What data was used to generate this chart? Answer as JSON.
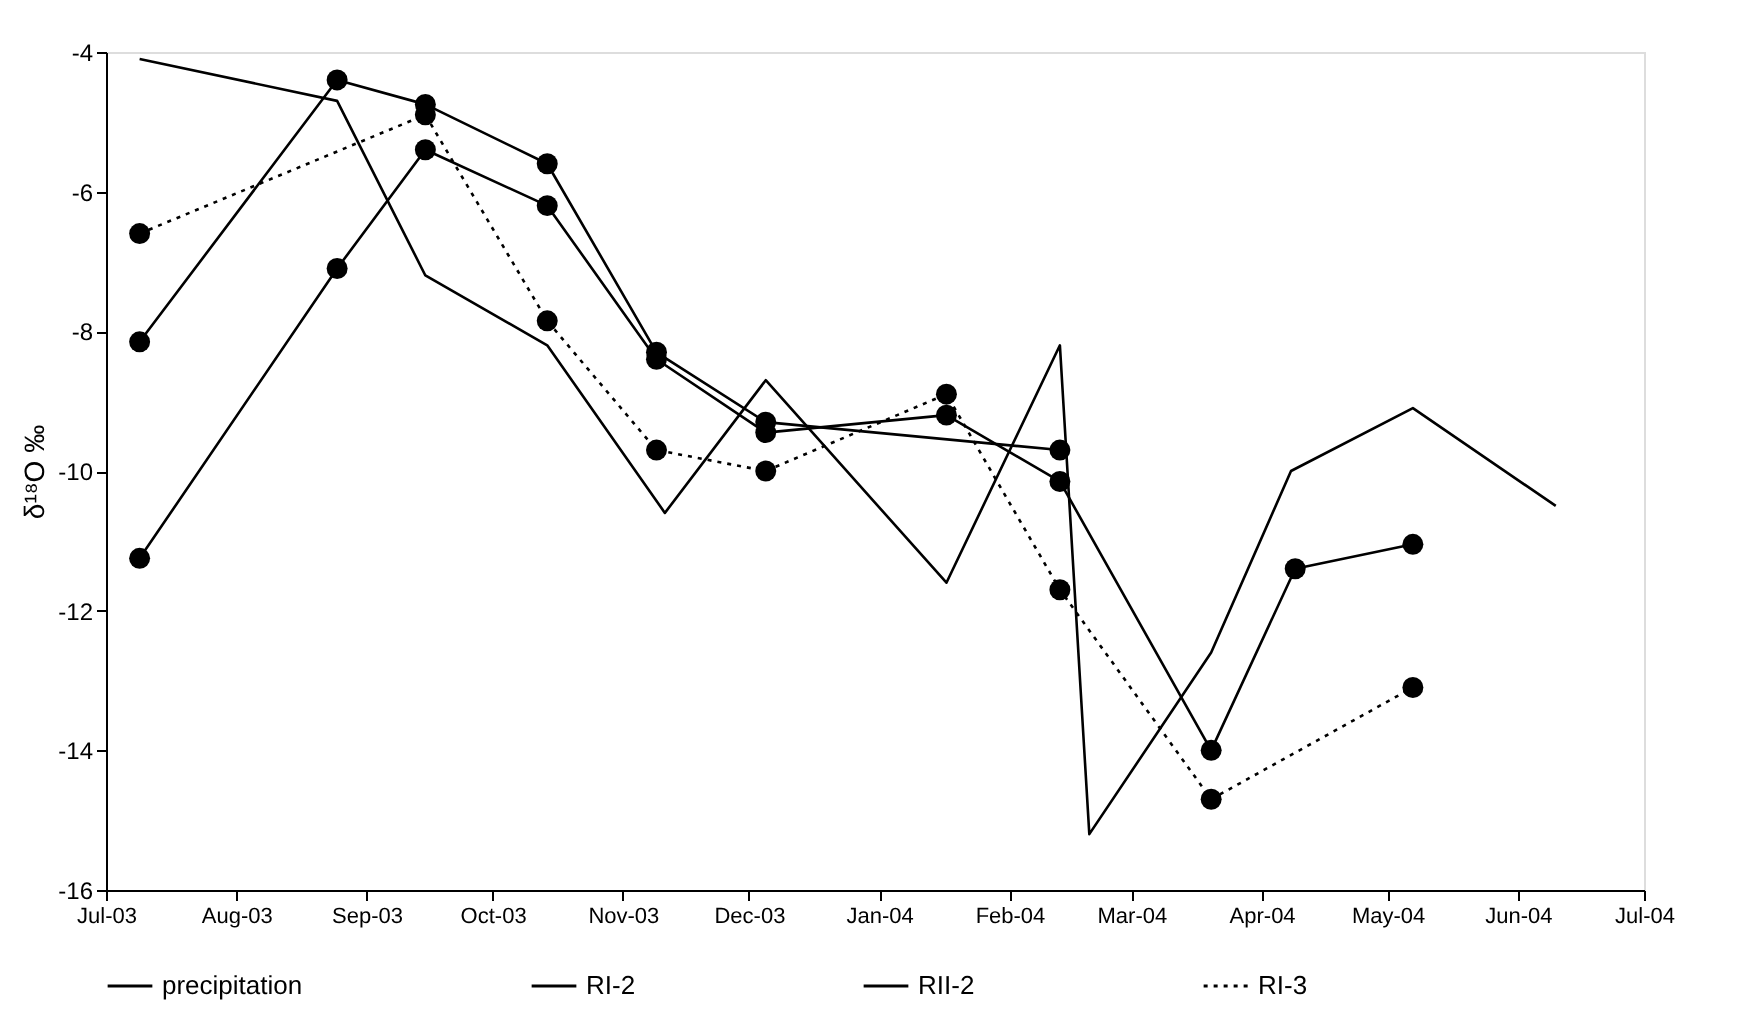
{
  "chart_data": {
    "type": "line",
    "ylabel": "δ¹⁸O ‰",
    "ylim": [
      -16,
      -4
    ],
    "yticks": [
      -16,
      -14,
      -12,
      -10,
      -8,
      -6,
      -4
    ],
    "xlim": [
      "2003-07-01",
      "2004-07-01"
    ],
    "xticks": [
      {
        "value": "2003-07-01",
        "label": "Jul-03"
      },
      {
        "value": "2003-08-01",
        "label": "Aug-03"
      },
      {
        "value": "2003-09-01",
        "label": "Sep-03"
      },
      {
        "value": "2003-10-01",
        "label": "Oct-03"
      },
      {
        "value": "2003-11-01",
        "label": "Nov-03"
      },
      {
        "value": "2003-12-01",
        "label": "Dec-03"
      },
      {
        "value": "2004-01-01",
        "label": "Jan-04"
      },
      {
        "value": "2004-02-01",
        "label": "Feb-04"
      },
      {
        "value": "2004-03-01",
        "label": "Mar-04"
      },
      {
        "value": "2004-04-01",
        "label": "Apr-04"
      },
      {
        "value": "2004-05-01",
        "label": "May-04"
      },
      {
        "value": "2004-06-01",
        "label": "Jun-04"
      },
      {
        "value": "2004-07-01",
        "label": "Jul-04"
      }
    ],
    "grid": false,
    "legend": "bottom",
    "series": [
      {
        "name": "precipitation",
        "color": "#000000",
        "marker": "none",
        "line_style": "solid",
        "x": [
          "2003-07-09",
          "2003-08-25",
          "2003-09-15",
          "2003-10-14",
          "2003-11-11",
          "2003-12-05",
          "2004-01-17",
          "2004-02-13",
          "2004-02-20",
          "2004-03-20",
          "2004-04-08",
          "2004-05-07",
          "2004-06-10"
        ],
        "values": [
          -4.1,
          -4.7,
          -7.2,
          -8.2,
          -10.6,
          -8.7,
          -11.6,
          -8.2,
          -15.2,
          -12.6,
          -10.0,
          -9.1,
          -10.5
        ]
      },
      {
        "name": "RI-2",
        "color": "#000000",
        "marker": "circle",
        "line_style": "solid",
        "x": [
          "2003-07-09",
          "2003-08-25",
          "2003-09-15",
          "2003-10-14",
          "2003-11-09",
          "2003-12-05",
          "2004-01-17",
          "2004-02-13",
          "2004-03-20",
          "2004-04-09",
          "2004-05-07"
        ],
        "values": [
          -11.25,
          -7.1,
          -5.4,
          -6.2,
          -8.4,
          -9.45,
          -9.2,
          -10.15,
          -14.0,
          -11.4,
          -11.05
        ]
      },
      {
        "name": "RII-2",
        "color": "#000000",
        "marker": "circle",
        "line_style": "solid",
        "x": [
          "2003-07-09",
          "2003-08-25",
          "2003-09-15",
          "2003-10-14",
          "2003-11-09",
          "2003-12-05",
          "2004-02-13"
        ],
        "values": [
          -8.15,
          -4.4,
          -4.75,
          -5.6,
          -8.3,
          -9.3,
          -9.7
        ]
      },
      {
        "name": "RI-3",
        "color": "#000000",
        "marker": "circle",
        "line_style": "dotted",
        "x": [
          "2003-07-09",
          "2003-09-15",
          "2003-10-14",
          "2003-11-09",
          "2003-12-05",
          "2004-01-17",
          "2004-02-13",
          "2004-03-20",
          "2004-05-07"
        ],
        "values": [
          -6.6,
          -4.9,
          -7.85,
          -9.7,
          -10.0,
          -8.9,
          -11.7,
          -14.7,
          -13.1
        ]
      }
    ]
  }
}
